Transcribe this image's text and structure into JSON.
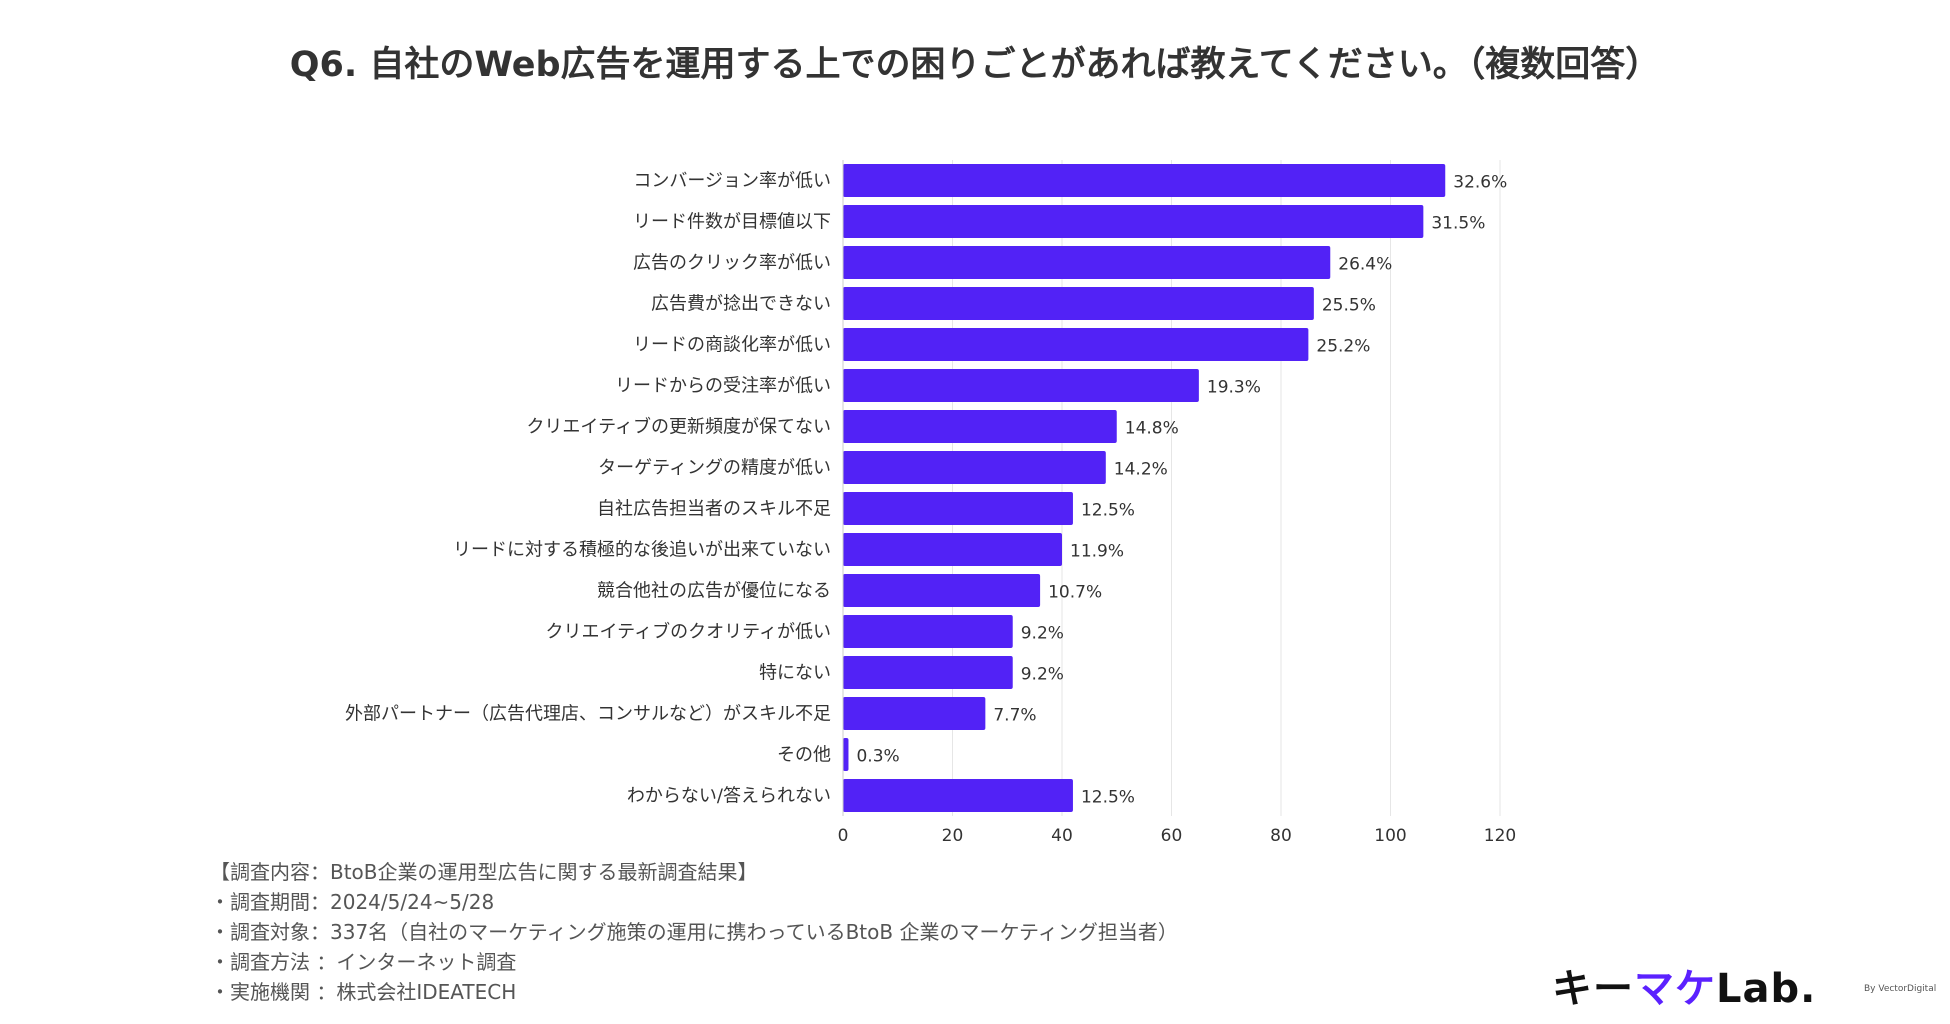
{
  "title": "Q6. 自社のWeb広告を運用する上での困りごとがあれば教えてください。（複数回答）",
  "colors": {
    "bar": "#5222f6",
    "grid": "#e6e6e6",
    "text": "#333333",
    "accent": "#5b21ff"
  },
  "chart_data": {
    "type": "bar",
    "orientation": "horizontal",
    "categories": [
      "コンバージョン率が低い",
      "リード件数が目標値以下",
      "広告のクリック率が低い",
      "広告費が捻出できない",
      "リードの商談化率が低い",
      "リードからの受注率が低い",
      "クリエイティブの更新頻度が保てない",
      "ターゲティングの精度が低い",
      "自社広告担当者のスキル不足",
      "リードに対する積極的な後追いが出来ていない",
      "競合他社の広告が優位になる",
      "クリエイティブのクオリティが低い",
      "特にない",
      "外部パートナー（広告代理店、コンサルなど）がスキル不足",
      "その他",
      "わからない/答えられない"
    ],
    "values": [
      110,
      106,
      89,
      86,
      85,
      65,
      50,
      48,
      42,
      40,
      36,
      31,
      31,
      26,
      1,
      42
    ],
    "value_labels": [
      "32.6%",
      "31.5%",
      "26.4%",
      "25.5%",
      "25.2%",
      "19.3%",
      "14.8%",
      "14.2%",
      "12.5%",
      "11.9%",
      "10.7%",
      "9.2%",
      "9.2%",
      "7.7%",
      "0.3%",
      "12.5%"
    ],
    "xlim": [
      0,
      120
    ],
    "xticks": [
      0,
      20,
      40,
      60,
      80,
      100,
      120
    ],
    "grid": true
  },
  "notes": [
    "【調査内容：BtoB企業の運用型広告に関する最新調査結果】",
    "・調査期間：2024/5/24~5/28",
    "・調査対象：337名（自社のマーケティング施策の運用に携わっているBtoB 企業のマーケティング担当者）",
    "・調査方法 ：インターネット調査",
    "・実施機関 ：株式会社IDEATECH"
  ],
  "logo": {
    "part1": "キー",
    "part2": "マケ",
    "part3": "Lab.",
    "by": "By VectorDigital"
  }
}
